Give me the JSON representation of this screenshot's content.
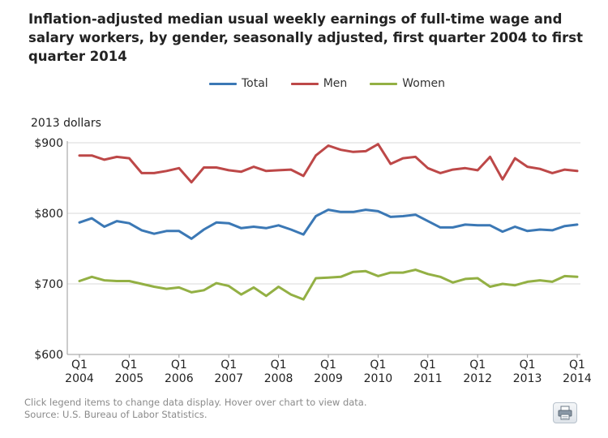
{
  "title": "Inflation-adjusted median usual weekly earnings of full-time wage and salary workers, by gender, seasonally adjusted, first quarter 2004 to first quarter 2014",
  "legend": {
    "total": "Total",
    "men": "Men",
    "women": "Women"
  },
  "unit_label": "2013 dollars",
  "footer": {
    "note": "Click legend items to change data display. Hover over chart to view data.",
    "source": "Source: U.S. Bureau of Labor Statistics."
  },
  "print_icon": "printer-icon",
  "chart_data": {
    "type": "line",
    "ylabel": "2013 dollars",
    "ylim": [
      600,
      900
    ],
    "yticks": [
      "$600",
      "$700",
      "$800",
      "$900"
    ],
    "xticks": [
      {
        "top": "Q1",
        "bottom": "2004"
      },
      {
        "top": "Q1",
        "bottom": "2005"
      },
      {
        "top": "Q1",
        "bottom": "2006"
      },
      {
        "top": "Q1",
        "bottom": "2007"
      },
      {
        "top": "Q1",
        "bottom": "2008"
      },
      {
        "top": "Q1",
        "bottom": "2009"
      },
      {
        "top": "Q1",
        "bottom": "2010"
      },
      {
        "top": "Q1",
        "bottom": "2011"
      },
      {
        "top": "Q1",
        "bottom": "2012"
      },
      {
        "top": "Q1",
        "bottom": "2013"
      },
      {
        "top": "Q1",
        "bottom": "2014"
      }
    ],
    "x_range": [
      "2004 Q1",
      "2014 Q1"
    ],
    "grid": "horizontal",
    "legend_position": "top-center",
    "series": [
      {
        "name": "Total",
        "color": "#3b78b5",
        "values": [
          787,
          793,
          781,
          789,
          786,
          776,
          771,
          775,
          775,
          764,
          777,
          787,
          786,
          779,
          781,
          779,
          783,
          777,
          770,
          796,
          805,
          802,
          802,
          805,
          803,
          795,
          796,
          798,
          789,
          780,
          780,
          784,
          783,
          783,
          774,
          781,
          775,
          777,
          776,
          782,
          784
        ]
      },
      {
        "name": "Men",
        "color": "#bd4848",
        "values": [
          882,
          882,
          876,
          880,
          878,
          857,
          857,
          860,
          864,
          844,
          865,
          865,
          861,
          859,
          866,
          860,
          861,
          862,
          853,
          882,
          896,
          890,
          887,
          888,
          898,
          870,
          878,
          880,
          864,
          857,
          862,
          864,
          861,
          880,
          848,
          878,
          866,
          863,
          857,
          862,
          860
        ]
      },
      {
        "name": "Women",
        "color": "#93b044",
        "values": [
          704,
          710,
          705,
          704,
          704,
          700,
          696,
          693,
          695,
          688,
          691,
          701,
          697,
          685,
          695,
          683,
          696,
          685,
          678,
          708,
          709,
          710,
          717,
          718,
          711,
          716,
          716,
          720,
          714,
          710,
          702,
          707,
          708,
          696,
          700,
          698,
          703,
          705,
          703,
          711,
          710
        ]
      }
    ]
  }
}
